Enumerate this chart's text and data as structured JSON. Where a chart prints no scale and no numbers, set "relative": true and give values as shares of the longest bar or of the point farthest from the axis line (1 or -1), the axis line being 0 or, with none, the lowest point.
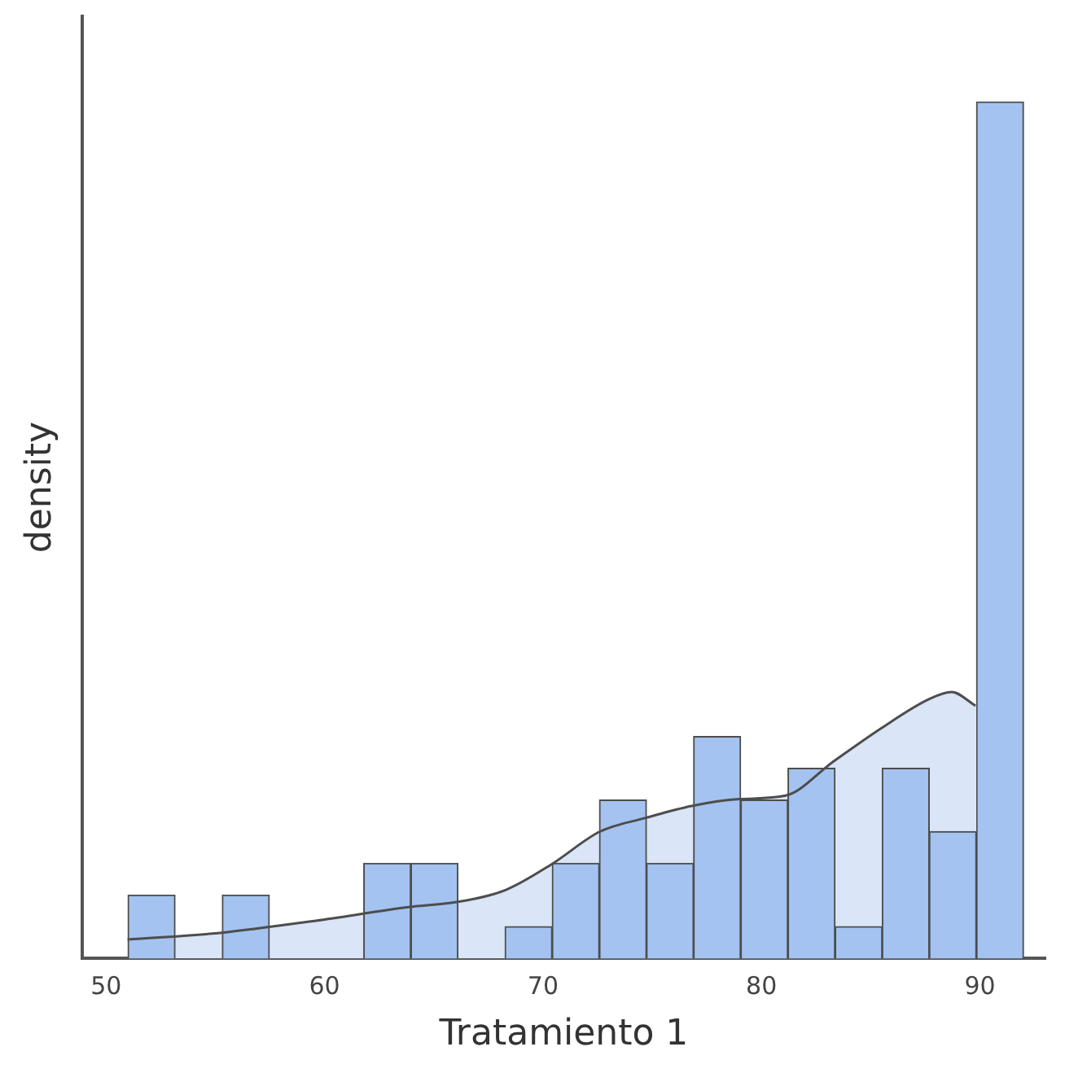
{
  "chart_data": {
    "type": "histogram",
    "xlabel": "Tratamiento 1",
    "ylabel": "density",
    "relative": true,
    "grid": false,
    "legend": false,
    "xlim": [
      48.9,
      93
    ],
    "xticks": [
      50,
      60,
      70,
      80,
      90
    ],
    "bins": [
      51,
      53.16,
      55.32,
      57.47,
      59.63,
      61.79,
      63.95,
      66.11,
      68.26,
      70.42,
      72.58,
      74.74,
      76.89,
      79.05,
      81.21,
      83.37,
      85.53,
      87.68,
      89.84,
      92
    ],
    "series": [
      {
        "color": "#a4c3f0",
        "values": [
          0.074,
          0,
          0.074,
          0,
          0,
          0.111,
          0.111,
          0,
          0.037,
          0.111,
          0.185,
          0.111,
          0.259,
          0.185,
          0.222,
          0.037,
          0.222,
          0.148,
          1
        ]
      },
      {
        "type": "area",
        "color": "#4d4d4d",
        "x": [
          50.98,
          55.3,
          59.6,
          63.9,
          66.1,
          68.3,
          70.4,
          72.6,
          74.7,
          76.8,
          79.0,
          81.1,
          83.3,
          85.5,
          87.7,
          88.7,
          89.8
        ],
        "values": [
          0.022,
          0.03,
          0.044,
          0.06,
          0.066,
          0.08,
          0.11,
          0.148,
          0.164,
          0.178,
          0.186,
          0.19,
          0.23,
          0.269,
          0.303,
          0.311,
          0.295
        ]
      }
    ]
  }
}
